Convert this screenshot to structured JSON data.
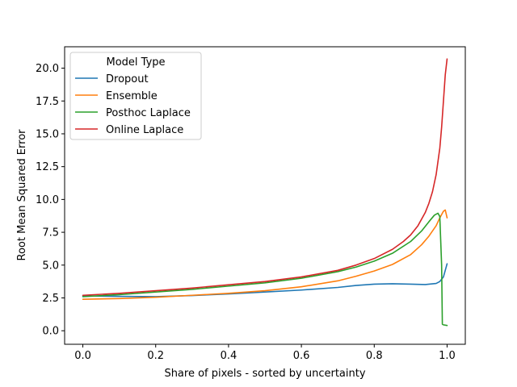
{
  "chart_data": {
    "type": "line",
    "title": "",
    "xlabel": "Share of pixels - sorted by uncertainty",
    "ylabel": "Root Mean Squared Error",
    "xlim": [
      -0.05,
      1.05
    ],
    "ylim": [
      -1.03,
      21.63
    ],
    "x_ticks": [
      0.0,
      0.2,
      0.4,
      0.6,
      0.8,
      1.0
    ],
    "x_tick_labels": [
      "0.0",
      "0.2",
      "0.4",
      "0.6",
      "0.8",
      "1.0"
    ],
    "y_ticks": [
      0.0,
      2.5,
      5.0,
      7.5,
      10.0,
      12.5,
      15.0,
      17.5,
      20.0
    ],
    "y_tick_labels": [
      "0.0",
      "2.5",
      "5.0",
      "7.5",
      "10.0",
      "12.5",
      "15.0",
      "17.5",
      "20.0"
    ],
    "grid": false,
    "legend": {
      "title": "Model Type",
      "placement": "upper-left"
    },
    "series": [
      {
        "name": "Dropout",
        "color": "#1f77b4",
        "x": [
          0.0,
          0.1,
          0.2,
          0.3,
          0.4,
          0.5,
          0.6,
          0.7,
          0.75,
          0.8,
          0.85,
          0.9,
          0.94,
          0.97,
          0.98,
          0.99,
          1.0
        ],
        "y": [
          2.65,
          2.62,
          2.6,
          2.68,
          2.8,
          2.95,
          3.1,
          3.3,
          3.45,
          3.55,
          3.58,
          3.55,
          3.52,
          3.6,
          3.75,
          4.1,
          5.1
        ]
      },
      {
        "name": "Ensemble",
        "color": "#ff7f0e",
        "x": [
          0.0,
          0.1,
          0.2,
          0.3,
          0.4,
          0.5,
          0.6,
          0.7,
          0.75,
          0.8,
          0.85,
          0.9,
          0.93,
          0.95,
          0.97,
          0.98,
          0.99,
          0.995,
          1.0
        ],
        "y": [
          2.4,
          2.45,
          2.55,
          2.7,
          2.85,
          3.05,
          3.35,
          3.8,
          4.15,
          4.55,
          5.05,
          5.8,
          6.55,
          7.2,
          8.0,
          8.6,
          9.1,
          9.2,
          8.6
        ]
      },
      {
        "name": "Posthoc Laplace",
        "color": "#2ca02c",
        "x": [
          0.0,
          0.1,
          0.2,
          0.3,
          0.4,
          0.5,
          0.6,
          0.7,
          0.75,
          0.8,
          0.85,
          0.9,
          0.93,
          0.95,
          0.965,
          0.975,
          0.98,
          0.985,
          0.987,
          0.99,
          1.0
        ],
        "y": [
          2.6,
          2.75,
          2.95,
          3.15,
          3.4,
          3.65,
          4.0,
          4.5,
          4.85,
          5.3,
          5.9,
          6.8,
          7.6,
          8.3,
          8.8,
          8.95,
          8.7,
          5.0,
          0.5,
          0.45,
          0.4
        ]
      },
      {
        "name": "Online Laplace",
        "color": "#d62728",
        "x": [
          0.0,
          0.1,
          0.2,
          0.3,
          0.4,
          0.5,
          0.6,
          0.7,
          0.75,
          0.8,
          0.85,
          0.88,
          0.9,
          0.92,
          0.94,
          0.95,
          0.96,
          0.97,
          0.98,
          0.985,
          0.99,
          0.995,
          1.0
        ],
        "y": [
          2.7,
          2.85,
          3.05,
          3.25,
          3.5,
          3.75,
          4.1,
          4.6,
          5.0,
          5.5,
          6.2,
          6.8,
          7.3,
          8.0,
          9.0,
          9.7,
          10.6,
          11.9,
          13.9,
          15.5,
          17.5,
          19.5,
          20.7
        ]
      }
    ]
  }
}
